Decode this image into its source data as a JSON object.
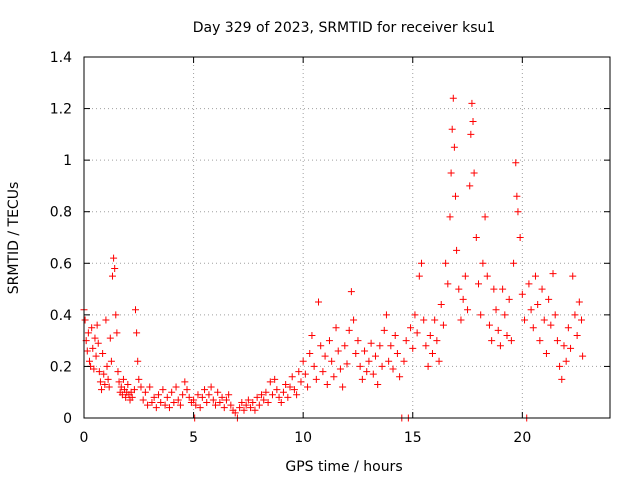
{
  "chart_data": {
    "type": "scatter",
    "title": "Day 329 of 2023, SRMTID for receiver ksu1",
    "xlabel": "GPS time / hours",
    "ylabel": "SRMTID / TECUs",
    "xlim": [
      0,
      24
    ],
    "ylim": [
      0,
      1.4
    ],
    "x_ticks": [
      0,
      5,
      10,
      15,
      20
    ],
    "y_ticks": [
      0,
      0.2,
      0.4,
      0.6,
      0.8,
      1,
      1.2,
      1.4
    ],
    "x_tick_labels": [
      "0",
      "5",
      "10",
      "15",
      "20"
    ],
    "y_tick_labels": [
      "0",
      "0.2",
      "0.4",
      "0.6",
      "0.8",
      "1",
      "1.2",
      "1.4"
    ],
    "grid": true,
    "marker": "+",
    "color": "#ff0000",
    "series": [
      {
        "name": "SRMTID",
        "points": [
          [
            0.0,
            0.42
          ],
          [
            0.05,
            0.38
          ],
          [
            0.1,
            0.3
          ],
          [
            0.15,
            0.26
          ],
          [
            0.2,
            0.33
          ],
          [
            0.25,
            0.22
          ],
          [
            0.3,
            0.2
          ],
          [
            0.35,
            0.35
          ],
          [
            0.4,
            0.27
          ],
          [
            0.45,
            0.19
          ],
          [
            0.5,
            0.31
          ],
          [
            0.55,
            0.24
          ],
          [
            0.6,
            0.36
          ],
          [
            0.65,
            0.29
          ],
          [
            0.7,
            0.18
          ],
          [
            0.75,
            0.14
          ],
          [
            0.8,
            0.11
          ],
          [
            0.85,
            0.25
          ],
          [
            0.9,
            0.17
          ],
          [
            0.95,
            0.13
          ],
          [
            1.0,
            0.38
          ],
          [
            1.05,
            0.2
          ],
          [
            1.1,
            0.15
          ],
          [
            1.15,
            0.12
          ],
          [
            1.2,
            0.31
          ],
          [
            1.25,
            0.22
          ],
          [
            1.3,
            0.55
          ],
          [
            1.35,
            0.62
          ],
          [
            1.4,
            0.58
          ],
          [
            1.45,
            0.4
          ],
          [
            1.5,
            0.33
          ],
          [
            1.55,
            0.18
          ],
          [
            1.6,
            0.14
          ],
          [
            1.65,
            0.1
          ],
          [
            1.7,
            0.12
          ],
          [
            1.75,
            0.09
          ],
          [
            1.8,
            0.15
          ],
          [
            1.85,
            0.11
          ],
          [
            1.9,
            0.08
          ],
          [
            1.95,
            0.1
          ],
          [
            2.0,
            0.13
          ],
          [
            2.05,
            0.09
          ],
          [
            2.1,
            0.07
          ],
          [
            2.15,
            0.1
          ],
          [
            2.2,
            0.08
          ],
          [
            2.3,
            0.11
          ],
          [
            2.35,
            0.42
          ],
          [
            2.4,
            0.33
          ],
          [
            2.45,
            0.22
          ],
          [
            2.5,
            0.15
          ],
          [
            2.6,
            0.12
          ],
          [
            2.7,
            0.07
          ],
          [
            2.8,
            0.1
          ],
          [
            2.9,
            0.05
          ],
          [
            3.0,
            0.12
          ],
          [
            3.1,
            0.06
          ],
          [
            3.2,
            0.08
          ],
          [
            3.3,
            0.04
          ],
          [
            3.4,
            0.09
          ],
          [
            3.5,
            0.06
          ],
          [
            3.6,
            0.11
          ],
          [
            3.7,
            0.05
          ],
          [
            3.8,
            0.08
          ],
          [
            3.9,
            0.04
          ],
          [
            4.0,
            0.1
          ],
          [
            4.1,
            0.06
          ],
          [
            4.2,
            0.12
          ],
          [
            4.3,
            0.07
          ],
          [
            4.4,
            0.05
          ],
          [
            4.5,
            0.09
          ],
          [
            4.6,
            0.14
          ],
          [
            4.7,
            0.11
          ],
          [
            4.8,
            0.08
          ],
          [
            4.9,
            0.06
          ],
          [
            5.0,
            0.07
          ],
          [
            5.05,
            0.0
          ],
          [
            5.1,
            0.05
          ],
          [
            5.2,
            0.09
          ],
          [
            5.3,
            0.04
          ],
          [
            5.4,
            0.08
          ],
          [
            5.5,
            0.11
          ],
          [
            5.6,
            0.06
          ],
          [
            5.7,
            0.09
          ],
          [
            5.8,
            0.12
          ],
          [
            5.9,
            0.07
          ],
          [
            6.0,
            0.05
          ],
          [
            6.1,
            0.1
          ],
          [
            6.2,
            0.06
          ],
          [
            6.3,
            0.08
          ],
          [
            6.4,
            0.04
          ],
          [
            6.5,
            0.07
          ],
          [
            6.6,
            0.09
          ],
          [
            6.7,
            0.05
          ],
          [
            6.8,
            0.03
          ],
          [
            6.9,
            0.02
          ],
          [
            7.0,
            0.0
          ],
          [
            7.1,
            0.04
          ],
          [
            7.2,
            0.06
          ],
          [
            7.3,
            0.03
          ],
          [
            7.4,
            0.05
          ],
          [
            7.5,
            0.07
          ],
          [
            7.6,
            0.04
          ],
          [
            7.7,
            0.06
          ],
          [
            7.8,
            0.03
          ],
          [
            7.9,
            0.08
          ],
          [
            8.0,
            0.05
          ],
          [
            8.1,
            0.09
          ],
          [
            8.2,
            0.07
          ],
          [
            8.3,
            0.1
          ],
          [
            8.4,
            0.06
          ],
          [
            8.5,
            0.14
          ],
          [
            8.6,
            0.09
          ],
          [
            8.7,
            0.15
          ],
          [
            8.8,
            0.11
          ],
          [
            8.9,
            0.08
          ],
          [
            9.0,
            0.06
          ],
          [
            9.1,
            0.1
          ],
          [
            9.2,
            0.13
          ],
          [
            9.3,
            0.08
          ],
          [
            9.4,
            0.12
          ],
          [
            9.5,
            0.16
          ],
          [
            9.6,
            0.11
          ],
          [
            9.7,
            0.09
          ],
          [
            9.8,
            0.18
          ],
          [
            9.9,
            0.14
          ],
          [
            10.0,
            0.22
          ],
          [
            10.1,
            0.17
          ],
          [
            10.2,
            0.12
          ],
          [
            10.3,
            0.25
          ],
          [
            10.4,
            0.32
          ],
          [
            10.5,
            0.2
          ],
          [
            10.6,
            0.15
          ],
          [
            10.7,
            0.45
          ],
          [
            10.8,
            0.28
          ],
          [
            10.9,
            0.18
          ],
          [
            11.0,
            0.24
          ],
          [
            11.1,
            0.13
          ],
          [
            11.2,
            0.3
          ],
          [
            11.3,
            0.22
          ],
          [
            11.4,
            0.16
          ],
          [
            11.5,
            0.35
          ],
          [
            11.6,
            0.26
          ],
          [
            11.7,
            0.19
          ],
          [
            11.8,
            0.12
          ],
          [
            11.9,
            0.28
          ],
          [
            12.0,
            0.21
          ],
          [
            12.1,
            0.34
          ],
          [
            12.2,
            0.49
          ],
          [
            12.3,
            0.38
          ],
          [
            12.4,
            0.25
          ],
          [
            12.5,
            0.3
          ],
          [
            12.6,
            0.2
          ],
          [
            12.7,
            0.15
          ],
          [
            12.8,
            0.26
          ],
          [
            12.9,
            0.18
          ],
          [
            13.0,
            0.22
          ],
          [
            13.1,
            0.29
          ],
          [
            13.2,
            0.17
          ],
          [
            13.3,
            0.24
          ],
          [
            13.4,
            0.13
          ],
          [
            13.5,
            0.28
          ],
          [
            13.6,
            0.2
          ],
          [
            13.7,
            0.34
          ],
          [
            13.8,
            0.4
          ],
          [
            13.9,
            0.22
          ],
          [
            14.0,
            0.28
          ],
          [
            14.1,
            0.19
          ],
          [
            14.2,
            0.32
          ],
          [
            14.3,
            0.25
          ],
          [
            14.4,
            0.16
          ],
          [
            14.5,
            0.0
          ],
          [
            14.6,
            0.22
          ],
          [
            14.7,
            0.3
          ],
          [
            14.8,
            0.0
          ],
          [
            14.9,
            0.35
          ],
          [
            15.0,
            0.27
          ],
          [
            15.1,
            0.4
          ],
          [
            15.2,
            0.33
          ],
          [
            15.3,
            0.55
          ],
          [
            15.4,
            0.6
          ],
          [
            15.5,
            0.38
          ],
          [
            15.6,
            0.28
          ],
          [
            15.7,
            0.2
          ],
          [
            15.8,
            0.32
          ],
          [
            15.9,
            0.25
          ],
          [
            16.0,
            0.38
          ],
          [
            16.1,
            0.3
          ],
          [
            16.2,
            0.22
          ],
          [
            16.3,
            0.44
          ],
          [
            16.4,
            0.36
          ],
          [
            16.5,
            0.6
          ],
          [
            16.6,
            0.52
          ],
          [
            16.7,
            0.78
          ],
          [
            16.75,
            0.95
          ],
          [
            16.8,
            1.12
          ],
          [
            16.85,
            1.24
          ],
          [
            16.9,
            1.05
          ],
          [
            16.95,
            0.86
          ],
          [
            17.0,
            0.65
          ],
          [
            17.1,
            0.5
          ],
          [
            17.2,
            0.38
          ],
          [
            17.3,
            0.46
          ],
          [
            17.4,
            0.55
          ],
          [
            17.5,
            0.42
          ],
          [
            17.6,
            0.9
          ],
          [
            17.65,
            1.1
          ],
          [
            17.7,
            1.22
          ],
          [
            17.75,
            1.15
          ],
          [
            17.8,
            0.95
          ],
          [
            17.9,
            0.7
          ],
          [
            18.0,
            0.52
          ],
          [
            18.1,
            0.4
          ],
          [
            18.2,
            0.6
          ],
          [
            18.3,
            0.78
          ],
          [
            18.4,
            0.55
          ],
          [
            18.5,
            0.36
          ],
          [
            18.6,
            0.3
          ],
          [
            18.7,
            0.5
          ],
          [
            18.8,
            0.42
          ],
          [
            18.9,
            0.34
          ],
          [
            19.0,
            0.28
          ],
          [
            19.1,
            0.5
          ],
          [
            19.2,
            0.4
          ],
          [
            19.3,
            0.32
          ],
          [
            19.4,
            0.46
          ],
          [
            19.5,
            0.3
          ],
          [
            19.6,
            0.6
          ],
          [
            19.7,
            0.99
          ],
          [
            19.75,
            0.86
          ],
          [
            19.8,
            0.8
          ],
          [
            19.9,
            0.7
          ],
          [
            20.0,
            0.48
          ],
          [
            20.1,
            0.38
          ],
          [
            20.2,
            0.0
          ],
          [
            20.3,
            0.52
          ],
          [
            20.4,
            0.42
          ],
          [
            20.5,
            0.35
          ],
          [
            20.6,
            0.55
          ],
          [
            20.7,
            0.44
          ],
          [
            20.8,
            0.3
          ],
          [
            20.9,
            0.5
          ],
          [
            21.0,
            0.38
          ],
          [
            21.1,
            0.25
          ],
          [
            21.2,
            0.46
          ],
          [
            21.3,
            0.36
          ],
          [
            21.4,
            0.56
          ],
          [
            21.5,
            0.4
          ],
          [
            21.6,
            0.3
          ],
          [
            21.7,
            0.2
          ],
          [
            21.8,
            0.15
          ],
          [
            21.9,
            0.28
          ],
          [
            22.0,
            0.22
          ],
          [
            22.1,
            0.35
          ],
          [
            22.2,
            0.27
          ],
          [
            22.3,
            0.55
          ],
          [
            22.4,
            0.4
          ],
          [
            22.5,
            0.32
          ],
          [
            22.6,
            0.45
          ],
          [
            22.7,
            0.38
          ],
          [
            22.75,
            0.24
          ]
        ]
      }
    ]
  }
}
